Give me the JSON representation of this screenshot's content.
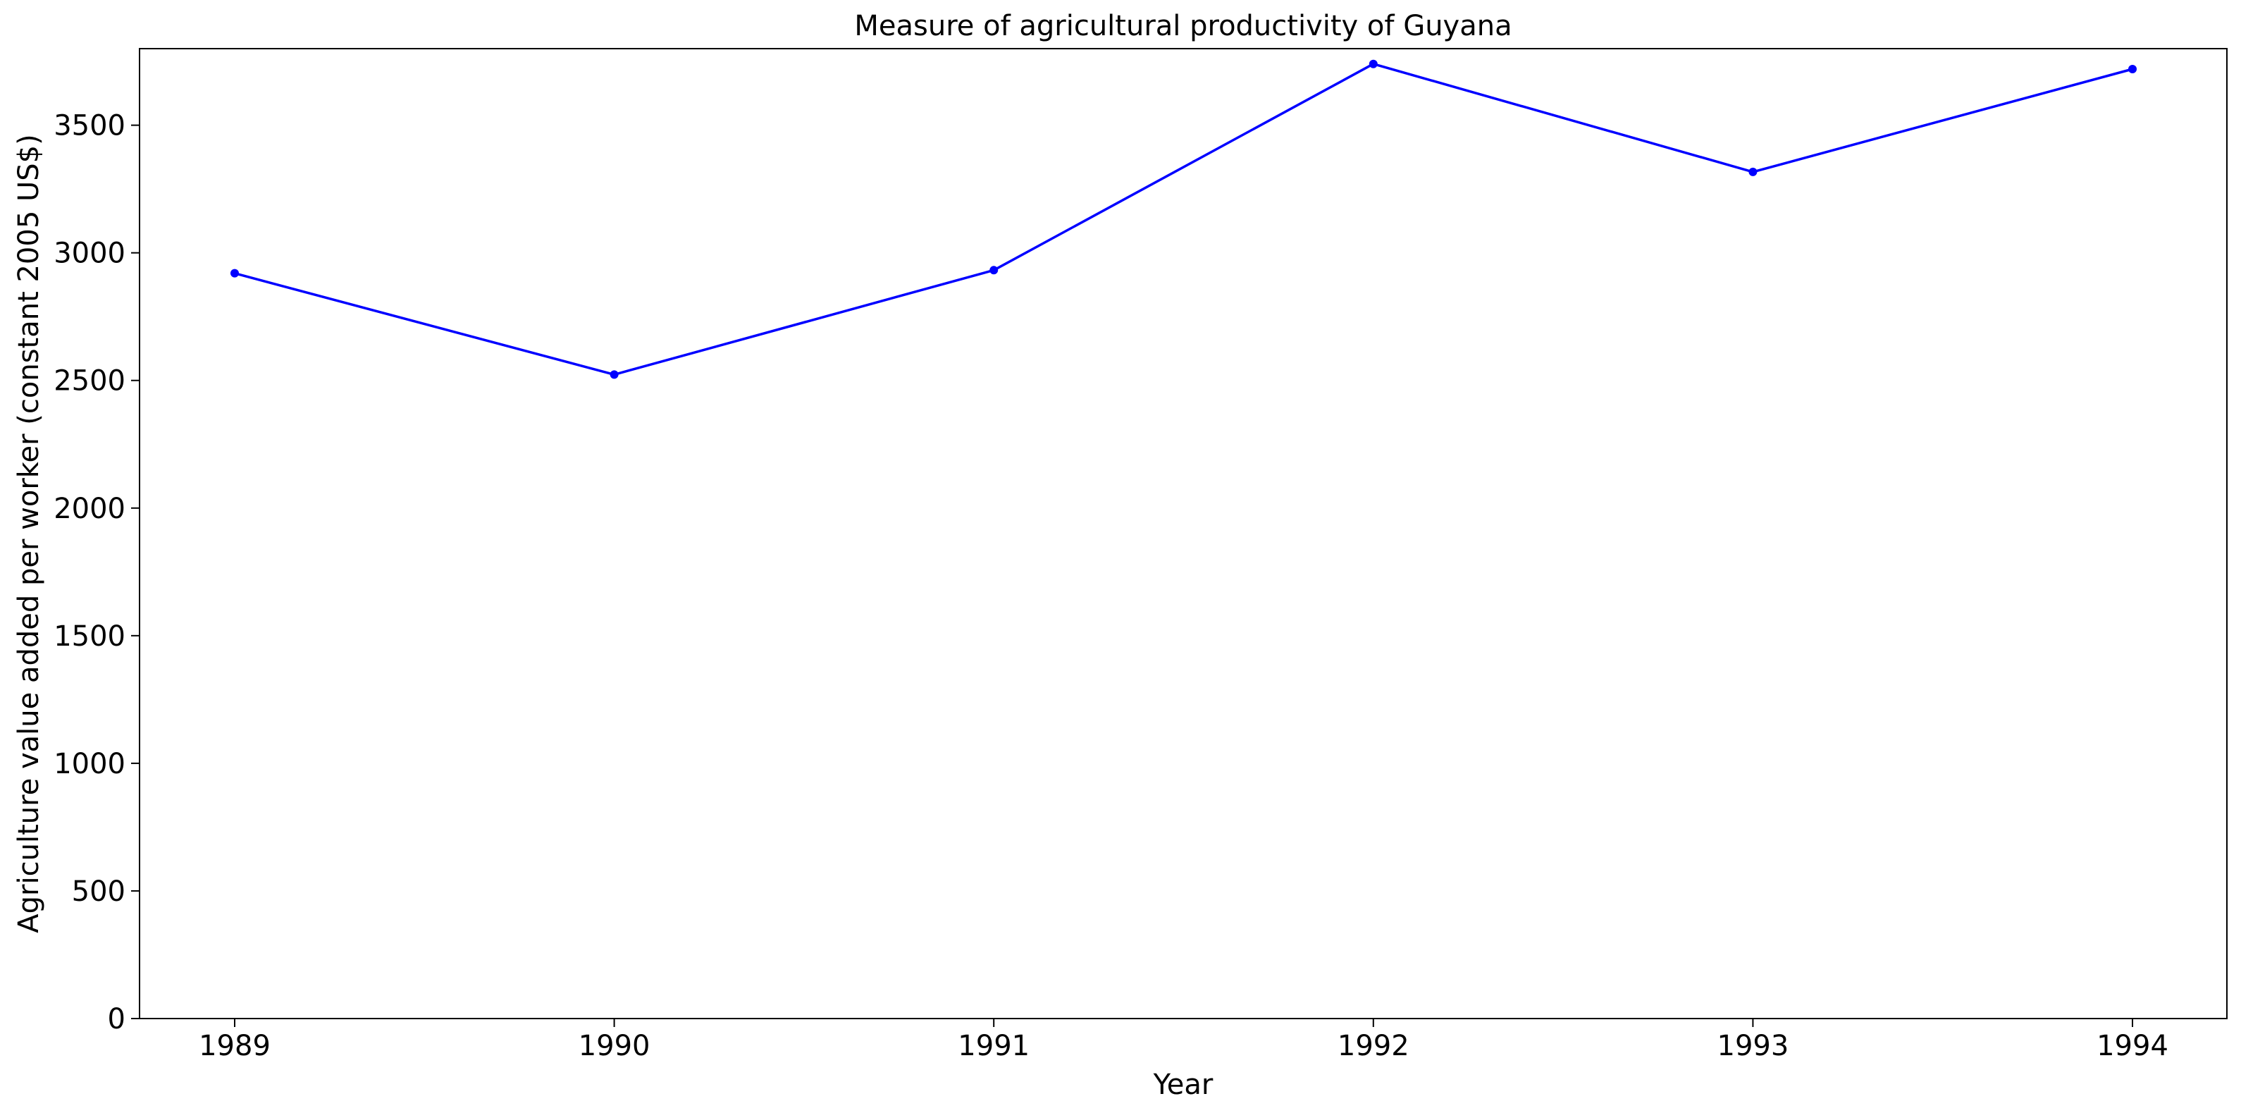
{
  "chart_data": {
    "type": "line",
    "title": "Measure of agricultural productivity of Guyana",
    "xlabel": "Year",
    "ylabel": "Agriculture value added per worker (constant 2005 US$)",
    "x": [
      "1989",
      "1990",
      "1991",
      "1992",
      "1993",
      "1994"
    ],
    "series": [
      {
        "values": [
          2920,
          2523,
          2932,
          3740,
          3317,
          3720
        ],
        "color": "#0000ff",
        "marker": "circle"
      }
    ],
    "x_ticks": [
      "1989",
      "1990",
      "1991",
      "1992",
      "1993",
      "1994"
    ],
    "y_ticks": [
      "0",
      "500",
      "1000",
      "1500",
      "2000",
      "2500",
      "3000",
      "3500"
    ],
    "ylim": [
      0,
      3800
    ],
    "grid": false,
    "legend": "none"
  }
}
